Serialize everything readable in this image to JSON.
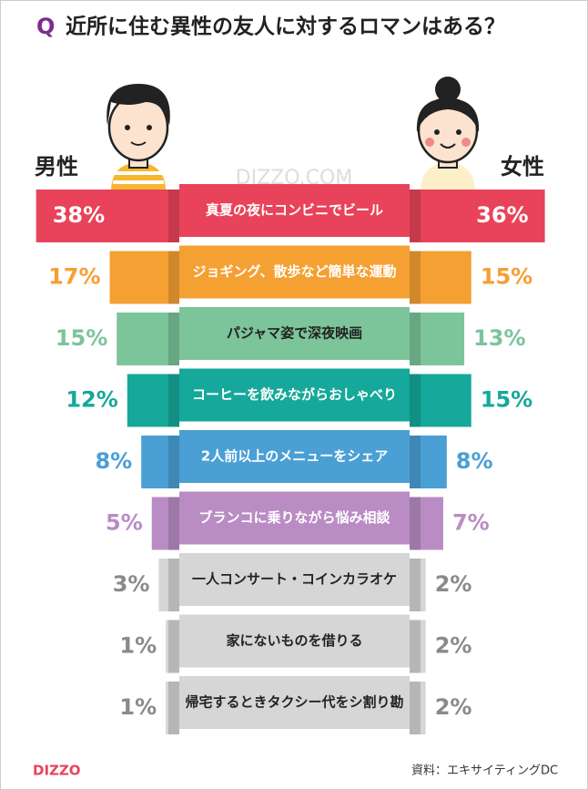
{
  "chart_data": {
    "type": "butterfly",
    "question_mark": "Q",
    "title": "近所に住む異性の友人に対するロマンはある？",
    "left_label": "男性",
    "right_label": "女性",
    "watermark": "DIZZO.COM",
    "logo": "DIZZO",
    "source": "資料：エキサイティングDC",
    "categories": [
      "真夏の夜にコンビニでビール",
      "ジョギング、散歩など簡単な運動",
      "パジャマ姿で深夜映画",
      "コーヒーを飲みながらおしゃべり",
      "2人前以上のメニューをシェア",
      "ブランコに乗りながら悩み相談",
      "一人コンサート・コインカラオケ",
      "家にないものを借りる",
      "帰宅するときタクシー代をシ割り勘"
    ],
    "colors": [
      "#e8435a",
      "#f5a033",
      "#7cc49a",
      "#16a89a",
      "#4a9fd4",
      "#b98cc4",
      "#d6d6d6",
      "#d6d6d6",
      "#d6d6d6"
    ],
    "text_colors": [
      "#e8435a",
      "#f5a033",
      "#7cc49a",
      "#16a89a",
      "#4a9fd4",
      "#b98cc4",
      "#8a8a8a",
      "#8a8a8a",
      "#8a8a8a"
    ],
    "category_label_colors": [
      "#ffffff",
      "#ffffff",
      "#222222",
      "#ffffff",
      "#ffffff",
      "#ffffff",
      "#222222",
      "#222222",
      "#222222"
    ],
    "series": [
      {
        "name": "男性",
        "values": [
          38,
          17,
          15,
          12,
          8,
          5,
          3,
          1,
          1
        ],
        "value_labels": [
          "38%",
          "17%",
          "15%",
          "12%",
          "8%",
          "5%",
          "3%",
          "1%",
          "1%"
        ]
      },
      {
        "name": "女性",
        "values": [
          36,
          15,
          13,
          15,
          8,
          7,
          2,
          2,
          2
        ],
        "value_labels": [
          "36%",
          "15%",
          "13%",
          "15%",
          "8%",
          "7%",
          "2%",
          "2%",
          "2%"
        ]
      }
    ]
  }
}
